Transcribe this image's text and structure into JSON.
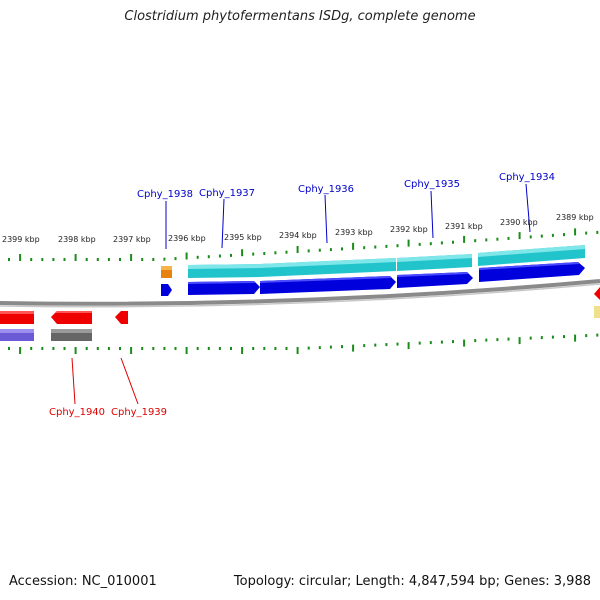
{
  "title": "Clostridium phytofermentans ISDg, complete genome",
  "footer": {
    "accession": "Accession: NC_010001",
    "summary": "Topology: circular; Length: 4,847,594 bp; Genes: 3,988"
  },
  "scale": {
    "labels": [
      "2399 kbp",
      "2398 kbp",
      "2397 kbp",
      "2396 kbp",
      "2395 kbp",
      "2394 kbp",
      "2393 kbp",
      "2392 kbp",
      "2391 kbp",
      "2390 kbp",
      "2389 kbp"
    ]
  },
  "genes_top": [
    "Cphy_1938",
    "Cphy_1937",
    "Cphy_1936",
    "Cphy_1935",
    "Cphy_1934"
  ],
  "genes_bottom": [
    "Cphy_1940",
    "Cphy_1939"
  ],
  "colors": {
    "label_top": "#0000cc",
    "label_bottom": "#dd0000",
    "cds_forward": "#0000dd",
    "cds_reverse": "#ee0000",
    "feature_forward": "#22c4cc",
    "tick": "#1a8c1a",
    "backbone": "#8a8a8a"
  }
}
